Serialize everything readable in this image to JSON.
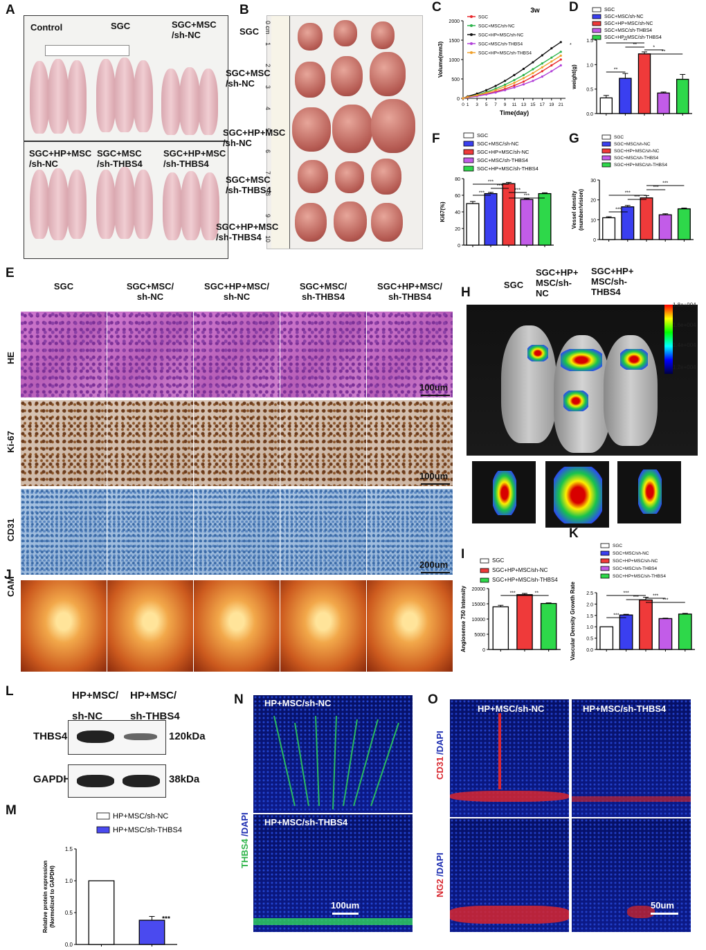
{
  "panels": {
    "A": "A",
    "B": "B",
    "C": "C",
    "D": "D",
    "E": "E",
    "F": "F",
    "G": "G",
    "H": "H",
    "I": "I",
    "J": "J",
    "K": "K",
    "L": "L",
    "M": "M",
    "N": "N",
    "O": "O"
  },
  "panel_a": {
    "top_labels": [
      "Control",
      "SGC",
      "SGC+MSC\n/sh-NC"
    ],
    "bottom_labels": [
      "SGC+HP+MSC\n/sh-NC",
      "SGC+MSC\n/sh-THBS4",
      "SGC+HP+MSC\n/sh-THBS4"
    ]
  },
  "panel_b": {
    "row_labels": [
      "SGC",
      "SGC+MSC\n/sh-NC",
      "SGC+HP+MSC\n/sh-NC",
      "SGC+MSC\n/sh-THBS4",
      "SGC+HP+MSC\n/sh-THBS4"
    ],
    "ruler_marks": [
      "0 cm",
      "1",
      "2",
      "3",
      "4",
      "5",
      "6",
      "7",
      "8",
      "9",
      "10"
    ]
  },
  "panel_e": {
    "columns": [
      "SGC",
      "SGC+MSC/\nsh-NC",
      "SGC+HP+MSC/\nsh-NC",
      "SGC+MSC/\nsh-THBS4",
      "SGC+HP+MSC/\nsh-THBS4"
    ],
    "rows": [
      "HE",
      "Ki-67",
      "CD31"
    ],
    "scale_bars": [
      "100um",
      "100um",
      "200um"
    ]
  },
  "panel_j": {
    "row": "CAM"
  },
  "panel_h": {
    "columns": [
      "SGC",
      "SGC+HP+\nMSC/sh-\nNC",
      "SGC+HP+\nMSC/sh-\nTHBS4"
    ],
    "colorbar": [
      "1.8e+004",
      "1.6e+004",
      "1.4e+004",
      "1.2e+004"
    ],
    "colorbar_colors": [
      "#ff0000",
      "#ffff00",
      "#00ff00",
      "#00ffff",
      "#0000ff",
      "#000040"
    ]
  },
  "panel_l": {
    "columns": [
      "HP+MSC/\nsh-NC",
      "HP+MSC/\nsh-THBS4"
    ],
    "rows": [
      "THBS4",
      "GAPDH"
    ],
    "sizes": [
      "120kDa",
      "38kDa"
    ]
  },
  "panel_n": {
    "top_title": "HP+MSC/sh-NC",
    "bottom_title": "HP+MSC/sh-THBS4",
    "side_label_a": "THBS4",
    "side_label_b": "/DAPI",
    "scale": "100um"
  },
  "panel_o": {
    "titles": [
      "HP+MSC/sh-NC",
      "HP+MSC/sh-THBS4"
    ],
    "row_labels": [
      [
        "CD31",
        "/DAPI"
      ],
      [
        "NG2",
        "/DAPI"
      ]
    ],
    "scale": "50um"
  },
  "chart_data": [
    {
      "id": "C",
      "type": "line",
      "title": "3w",
      "xlabel": "Time(day)",
      "ylabel": "Volume(mm3)",
      "x": [
        0,
        1,
        3,
        5,
        7,
        9,
        11,
        13,
        15,
        17,
        19,
        21
      ],
      "xticks": [
        "0",
        "1",
        "3",
        "5",
        "7",
        "9",
        "11",
        "13",
        "15",
        "17",
        "19",
        "21"
      ],
      "ylim": [
        0,
        2000
      ],
      "yticks": [
        "0",
        "500",
        "1000",
        "1500",
        "2000"
      ],
      "series": [
        {
          "name": "SGC",
          "color": "#e8262b",
          "values": [
            0,
            30,
            60,
            110,
            170,
            240,
            330,
            430,
            560,
            700,
            850,
            1000
          ]
        },
        {
          "name": "SGC+MSC/sh-NC",
          "color": "#2bb34a",
          "values": [
            0,
            40,
            90,
            160,
            250,
            350,
            470,
            600,
            750,
            900,
            1050,
            1200
          ]
        },
        {
          "name": "SGC+HP+MSC/sh-NC",
          "color": "#111111",
          "values": [
            0,
            50,
            120,
            210,
            320,
            450,
            600,
            760,
            930,
            1110,
            1290,
            1450
          ]
        },
        {
          "name": "SGC+MSC/sh-THBS4",
          "color": "#b03fd8",
          "values": [
            0,
            25,
            55,
            100,
            150,
            210,
            280,
            360,
            450,
            560,
            700,
            850
          ]
        },
        {
          "name": "SGC+HP+MSC/sh-THBS4",
          "color": "#f0a02a",
          "values": [
            0,
            35,
            80,
            140,
            210,
            300,
            400,
            520,
            650,
            800,
            950,
            1100
          ]
        }
      ]
    },
    {
      "id": "D",
      "type": "bar",
      "ylabel": "weight(g)",
      "ylim": [
        0,
        1.5
      ],
      "yticks": [
        "0.0",
        "0.5",
        "1.0",
        "1.5"
      ],
      "categories": [
        "SGC",
        "SGC+MSC/sh-NC",
        "SGC+HP+MSC/sh-NC",
        "SGC+MSC/sh-THBS4",
        "SGC+HP+MSC/sh-THBS4"
      ],
      "values": [
        0.32,
        0.72,
        1.22,
        0.42,
        0.7
      ],
      "errors": [
        0.05,
        0.1,
        0.04,
        0.02,
        0.1
      ],
      "colors": [
        "#ffffff",
        "#3a3ff0",
        "#ef3a3a",
        "#c25ce8",
        "#2ed84a"
      ],
      "sig": [
        "**",
        "**",
        "**",
        "*",
        "**"
      ]
    },
    {
      "id": "F",
      "type": "bar",
      "ylabel": "Ki67(%)",
      "ylim": [
        0,
        80
      ],
      "yticks": [
        "0",
        "20",
        "40",
        "60",
        "80"
      ],
      "categories": [
        "SGC",
        "SGC+MSC/sh-NC",
        "SGC+HP+MSC/sh-NC",
        "SGC+MSC/sh-THBS4",
        "SGC+HP+MSC/sh-THBS4"
      ],
      "values": [
        50,
        62,
        74,
        55,
        62
      ],
      "errors": [
        2.5,
        1.5,
        1.5,
        1,
        1
      ],
      "colors": [
        "#ffffff",
        "#3a3ff0",
        "#ef3a3a",
        "#c25ce8",
        "#2ed84a"
      ],
      "sig": [
        "***",
        "***",
        "***",
        "***",
        "***"
      ]
    },
    {
      "id": "G",
      "type": "bar",
      "ylabel": "Vessel density\n(number/vision)",
      "ylim": [
        0,
        30
      ],
      "yticks": [
        "0",
        "10",
        "20",
        "30"
      ],
      "categories": [
        "SGC",
        "SGC+MSC/sh-NC",
        "SGC+HP+MSC/sh-NC",
        "SGC+MSC/sh-THBS4",
        "SGC+HP+MSC/sh-THBS4"
      ],
      "values": [
        11,
        16.5,
        21,
        12.5,
        15.5
      ],
      "errors": [
        0.5,
        0.7,
        1.2,
        0.5,
        0.4
      ],
      "colors": [
        "#ffffff",
        "#3a3ff0",
        "#ef3a3a",
        "#c25ce8",
        "#2ed84a"
      ],
      "sig": [
        "***",
        "***",
        "***",
        "***",
        "***"
      ]
    },
    {
      "id": "I",
      "type": "bar",
      "ylabel": "Angiosense 750  Intensity",
      "ylim": [
        0,
        20000
      ],
      "yticks": [
        "0",
        "5000",
        "10000",
        "15000",
        "20000"
      ],
      "categories": [
        "SGC",
        "SGC+HP+MSC/sh-NC",
        "SGC+HP+MSC/sh-THBS4"
      ],
      "values": [
        14000,
        18000,
        15100
      ],
      "errors": [
        500,
        400,
        200
      ],
      "colors": [
        "#ffffff",
        "#ef3a3a",
        "#2ed84a"
      ],
      "sig": [
        "***",
        "**"
      ]
    },
    {
      "id": "K",
      "type": "bar",
      "ylabel": "Vascular Density Growth Rate",
      "ylim": [
        0,
        2.5
      ],
      "yticks": [
        "0.0",
        "0.5",
        "1.0",
        "1.5",
        "2.0",
        "2.5"
      ],
      "categories": [
        "SGC",
        "SGC+MSC/sh-NC",
        "SGC+HP+MSC/sh-NC",
        "SGC+MSC/sh-THBS4",
        "SGC+HP+MSC/sh-THBS4"
      ],
      "values": [
        1.0,
        1.52,
        2.18,
        1.36,
        1.56
      ],
      "errors": [
        0.0,
        0.03,
        0.12,
        0.02,
        0.03
      ],
      "colors": [
        "#ffffff",
        "#3a3ff0",
        "#ef3a3a",
        "#c25ce8",
        "#2ed84a"
      ],
      "sig": [
        "***",
        "***",
        "***",
        "***",
        "***"
      ]
    },
    {
      "id": "M",
      "type": "bar",
      "ylabel": "Relative protein expression\n(Normolized to GAPDH)",
      "ylim": [
        0,
        1.5
      ],
      "yticks": [
        "0.0",
        "0.5",
        "1.0",
        "1.5"
      ],
      "categories": [
        "HP+MSC/sh-NC",
        "HP+MSC/sh-THBS4"
      ],
      "values": [
        1.0,
        0.38
      ],
      "errors": [
        0.0,
        0.06
      ],
      "colors": [
        "#ffffff",
        "#4a4aef"
      ],
      "sig": [
        "***"
      ]
    }
  ]
}
